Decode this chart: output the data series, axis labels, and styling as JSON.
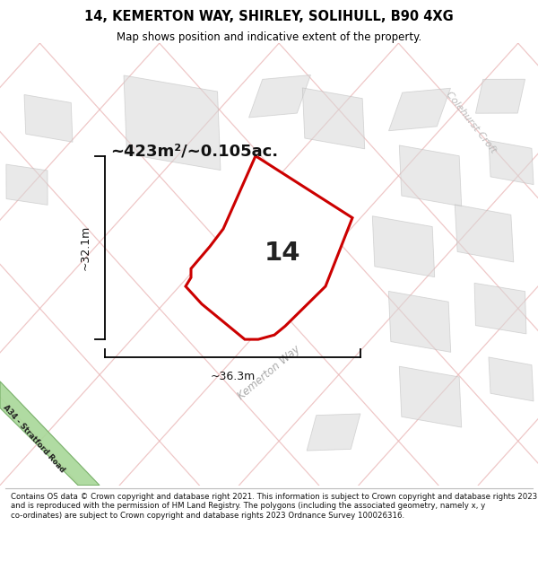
{
  "title": "14, KEMERTON WAY, SHIRLEY, SOLIHULL, B90 4XG",
  "subtitle": "Map shows position and indicative extent of the property.",
  "footer": "Contains OS data © Crown copyright and database right 2021. This information is subject to Crown copyright and database rights 2023 and is reproduced with the permission of HM Land Registry. The polygons (including the associated geometry, namely x, y co-ordinates) are subject to Crown copyright and database rights 2023 Ordnance Survey 100026316.",
  "bg_color": "#f8f4f4",
  "property_fill": "#ffffff",
  "property_edge": "#cc0000",
  "property_label": "14",
  "area_label": "~423m²/~0.105ac.",
  "dim_height_label": "~32.1m",
  "dim_width_label": "~36.3m",
  "road_label": "Kemerton Way",
  "colehurst_label": "Colehurst Croft",
  "a34_label": "A34 - Stratford Road",
  "pink_line_color": "#e8b0b0",
  "gray_fill": "#d8d8d8",
  "gray_edge": "#bbbbbb"
}
